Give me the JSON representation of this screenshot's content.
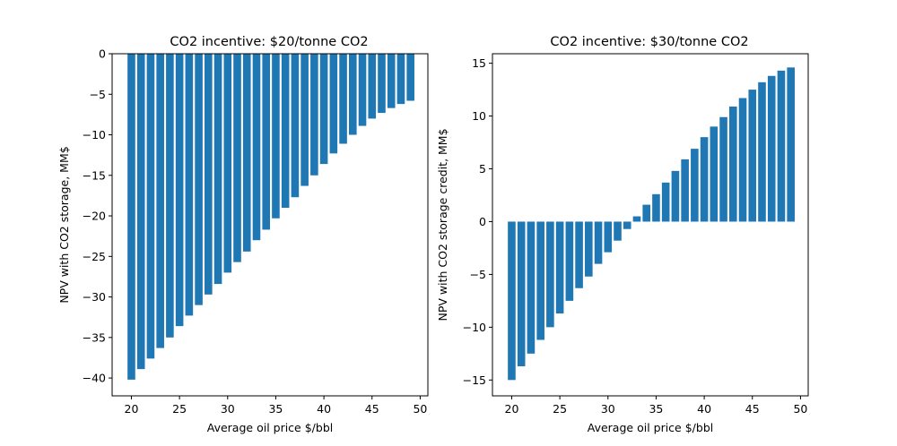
{
  "chart_data": [
    {
      "type": "bar",
      "title": "CO2 incentive: $20/tonne CO2",
      "xlabel": "Average oil price $/bbl",
      "ylabel": "NPV with CO2 storage, MM$",
      "xlim": [
        18.0,
        50.8
      ],
      "ylim": [
        -42.2,
        0
      ],
      "xticks": [
        20,
        25,
        30,
        35,
        40,
        45,
        50
      ],
      "yticks": [
        0,
        -5,
        -10,
        -15,
        -20,
        -25,
        -30,
        -35,
        -40
      ],
      "x": [
        20,
        21,
        22,
        23,
        24,
        25,
        26,
        27,
        28,
        29,
        30,
        31,
        32,
        33,
        34,
        35,
        36,
        37,
        38,
        39,
        40,
        41,
        42,
        43,
        44,
        45,
        46,
        47,
        48,
        49
      ],
      "values": [
        -40.2,
        -38.9,
        -37.6,
        -36.3,
        -35.0,
        -33.6,
        -32.3,
        -31.0,
        -29.7,
        -28.4,
        -27.0,
        -25.7,
        -24.4,
        -23.0,
        -21.7,
        -20.3,
        -19.0,
        -17.7,
        -16.3,
        -15.0,
        -13.6,
        -12.3,
        -11.1,
        -10.0,
        -8.9,
        -8.0,
        -7.3,
        -6.7,
        -6.2,
        -5.8
      ],
      "bar_color": "#1f77b4"
    },
    {
      "type": "bar",
      "title": "CO2 incentive: $30/tonne CO2",
      "xlabel": "Average oil price $/bbl",
      "ylabel": "NPV with CO2 storage credit, MM$",
      "xlim": [
        18.0,
        50.8
      ],
      "ylim": [
        -16.5,
        15.9
      ],
      "xticks": [
        20,
        25,
        30,
        35,
        40,
        45,
        50
      ],
      "yticks": [
        15,
        10,
        5,
        0,
        -5,
        -10,
        -15
      ],
      "x": [
        20,
        21,
        22,
        23,
        24,
        25,
        26,
        27,
        28,
        29,
        30,
        31,
        32,
        33,
        34,
        35,
        36,
        37,
        38,
        39,
        40,
        41,
        42,
        43,
        44,
        45,
        46,
        47,
        48,
        49
      ],
      "values": [
        -15.0,
        -13.7,
        -12.5,
        -11.2,
        -10.0,
        -8.7,
        -7.5,
        -6.3,
        -5.2,
        -4.0,
        -2.9,
        -1.8,
        -0.7,
        0.5,
        1.6,
        2.6,
        3.7,
        4.8,
        5.9,
        6.9,
        8.0,
        9.0,
        9.9,
        10.9,
        11.7,
        12.5,
        13.2,
        13.8,
        14.3,
        14.6
      ],
      "bar_color": "#1f77b4"
    }
  ]
}
